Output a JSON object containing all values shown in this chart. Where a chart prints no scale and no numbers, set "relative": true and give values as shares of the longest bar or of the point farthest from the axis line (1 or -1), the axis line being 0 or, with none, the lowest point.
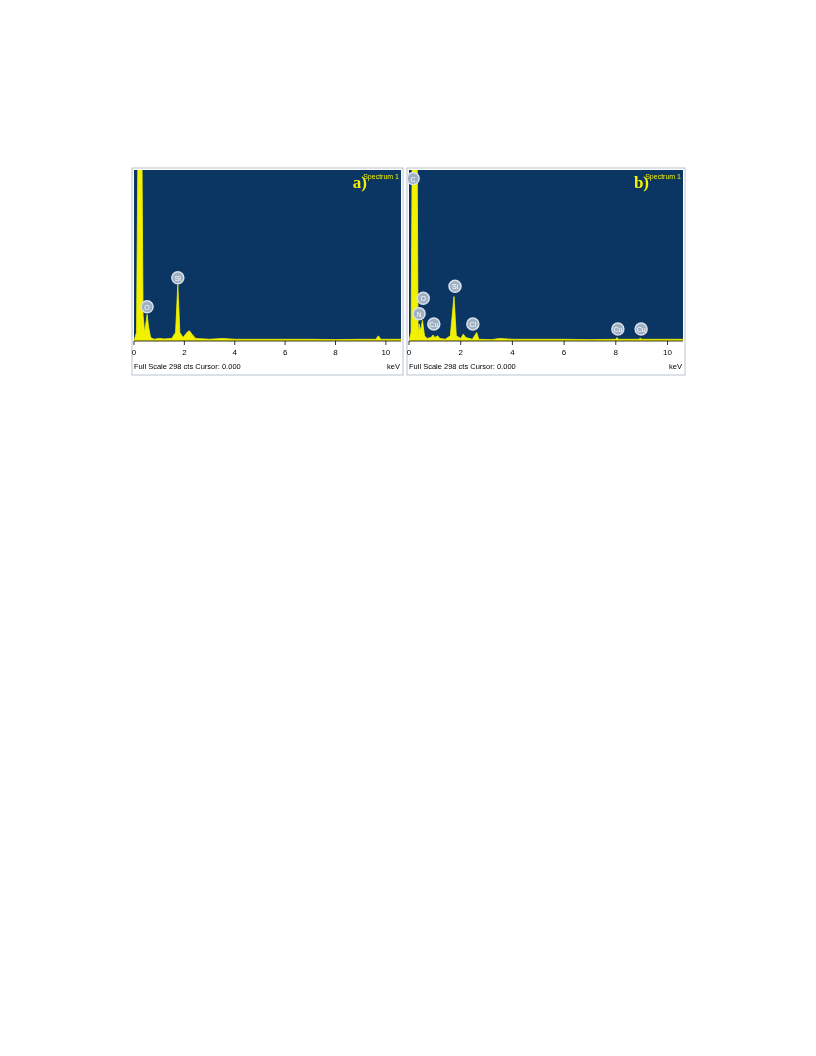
{
  "chart_data": [
    {
      "type": "area",
      "title": "a)",
      "subtitle": "Spectrum 1",
      "xlabel": "keV",
      "relative": true,
      "xlim": [
        0,
        10.6
      ],
      "xticks": [
        0,
        2,
        4,
        6,
        8,
        10
      ],
      "color": "#f2f200",
      "x": [
        0,
        0.1,
        0.15,
        0.32,
        0.36,
        0.42,
        0.47,
        0.52,
        0.58,
        0.66,
        0.8,
        1.0,
        1.2,
        1.5,
        1.65,
        1.74,
        1.82,
        1.95,
        2.1,
        2.2,
        2.3,
        2.45,
        3,
        3.5,
        4,
        5,
        6,
        7,
        8,
        9,
        9.6,
        9.7,
        9.8,
        10.6
      ],
      "values": [
        0,
        0.05,
        1,
        1,
        0.15,
        0.05,
        0.1,
        0.155,
        0.08,
        0.02,
        0.01,
        0.015,
        0.012,
        0.015,
        0.05,
        0.33,
        0.05,
        0.02,
        0.05,
        0.06,
        0.04,
        0.015,
        0.01,
        0.015,
        0.01,
        0.01,
        0.01,
        0.01,
        0.008,
        0.01,
        0.01,
        0.03,
        0.01,
        0.01
      ],
      "annotations": [
        {
          "text": "O",
          "x": 0.52,
          "y": 0.2
        },
        {
          "text": "Si",
          "x": 1.74,
          "y": 0.37
        },
        "Full Scale 298 cts Cursor: 0.000"
      ]
    },
    {
      "type": "area",
      "title": "b)",
      "subtitle": "Spectrum 1",
      "xlabel": "keV",
      "relative": true,
      "xlim": [
        0,
        10.6
      ],
      "xticks": [
        0,
        2,
        4,
        6,
        8,
        10
      ],
      "color": "#f2f200",
      "x": [
        0,
        0.08,
        0.12,
        0.32,
        0.35,
        0.39,
        0.45,
        0.52,
        0.6,
        0.7,
        0.85,
        0.93,
        1.0,
        1.1,
        1.2,
        1.4,
        1.6,
        1.74,
        1.83,
        2.0,
        2.1,
        2.2,
        2.45,
        2.62,
        2.7,
        3.2,
        3.5,
        4,
        5,
        6,
        7,
        8.0,
        8.05,
        8.1,
        8.9,
        8.95,
        9.0,
        10.6
      ],
      "values": [
        0,
        0.05,
        1,
        1,
        0.03,
        0.1,
        0.06,
        0.12,
        0.03,
        0.015,
        0.02,
        0.035,
        0.02,
        0.03,
        0.015,
        0.01,
        0.03,
        0.26,
        0.03,
        0.015,
        0.04,
        0.02,
        0.01,
        0.05,
        0.01,
        0.008,
        0.015,
        0.01,
        0.01,
        0.01,
        0.008,
        0.01,
        0.02,
        0.01,
        0.01,
        0.018,
        0.01,
        0.01
      ],
      "annotations": [
        {
          "text": "C",
          "x": 0.16,
          "y": 0.95
        },
        {
          "text": "O",
          "x": 0.55,
          "y": 0.25
        },
        {
          "text": "N",
          "x": 0.39,
          "y": 0.16
        },
        {
          "text": "Cu",
          "x": 0.96,
          "y": 0.1
        },
        {
          "text": "Si",
          "x": 1.78,
          "y": 0.32
        },
        {
          "text": "Cl",
          "x": 2.47,
          "y": 0.1
        },
        {
          "text": "Cu",
          "x": 8.08,
          "y": 0.07
        },
        {
          "text": "Cu",
          "x": 8.98,
          "y": 0.07
        },
        "Full Scale 298 cts Cursor: 0.000"
      ]
    }
  ]
}
